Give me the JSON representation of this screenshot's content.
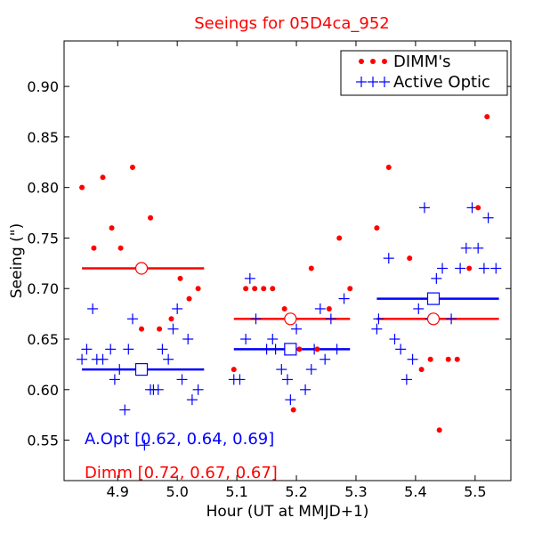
{
  "chart_data": {
    "type": "scatter",
    "title": "Seeings for 05D4ca_952",
    "xlabel": "Hour (UT at MMJD+1)",
    "ylabel": "Seeing (\")",
    "xlim": [
      4.81,
      5.56
    ],
    "ylim": [
      0.51,
      0.945
    ],
    "x_ticks": [
      4.9,
      5.0,
      5.1,
      5.2,
      5.3,
      5.4,
      5.5
    ],
    "x_tick_labels": [
      "4.9",
      "5.0",
      "5.1",
      "5.2",
      "5.3",
      "5.4",
      "5.5"
    ],
    "y_ticks": [
      0.55,
      0.6,
      0.65,
      0.7,
      0.75,
      0.8,
      0.85,
      0.9
    ],
    "y_tick_labels": [
      "0.55",
      "0.60",
      "0.65",
      "0.70",
      "0.75",
      "0.80",
      "0.85",
      "0.90"
    ],
    "legend_position": "top-right",
    "series": [
      {
        "name": "DIMM's",
        "marker": "dot",
        "color": "#ff0000",
        "x": [
          4.84,
          4.86,
          4.875,
          4.89,
          4.905,
          4.925,
          4.94,
          4.955,
          4.97,
          4.99,
          5.005,
          5.02,
          5.035,
          5.095,
          5.115,
          5.13,
          5.145,
          5.16,
          5.18,
          5.195,
          5.205,
          5.225,
          5.235,
          5.255,
          5.272,
          5.29,
          5.335,
          5.355,
          5.39,
          5.41,
          5.425,
          5.44,
          5.455,
          5.47,
          5.49,
          5.505,
          5.52
        ],
        "y": [
          0.8,
          0.74,
          0.81,
          0.76,
          0.74,
          0.82,
          0.66,
          0.77,
          0.66,
          0.67,
          0.71,
          0.69,
          0.7,
          0.62,
          0.7,
          0.7,
          0.7,
          0.7,
          0.68,
          0.58,
          0.64,
          0.72,
          0.64,
          0.68,
          0.75,
          0.7,
          0.76,
          0.82,
          0.73,
          0.62,
          0.63,
          0.56,
          0.63,
          0.63,
          0.72,
          0.78,
          0.87
        ]
      },
      {
        "name": "Active Optic",
        "marker": "plus",
        "color": "#0000ff",
        "x": [
          4.84,
          4.848,
          4.858,
          4.865,
          4.875,
          4.888,
          4.895,
          4.903,
          4.912,
          4.918,
          4.925,
          4.945,
          4.955,
          4.96,
          4.968,
          4.975,
          4.985,
          4.993,
          5.0,
          5.008,
          5.018,
          5.025,
          5.035,
          5.095,
          5.105,
          5.115,
          5.122,
          5.132,
          5.15,
          5.16,
          5.165,
          5.175,
          5.185,
          5.19,
          5.2,
          5.215,
          5.225,
          5.23,
          5.24,
          5.248,
          5.258,
          5.268,
          5.28,
          5.335,
          5.338,
          5.355,
          5.365,
          5.375,
          5.385,
          5.395,
          5.405,
          5.415,
          5.425,
          5.435,
          5.445,
          5.46,
          5.475,
          5.485,
          5.495,
          5.505,
          5.515,
          5.522,
          5.535
        ],
        "y": [
          0.63,
          0.64,
          0.68,
          0.63,
          0.63,
          0.64,
          0.61,
          0.62,
          0.58,
          0.64,
          0.67,
          0.545,
          0.6,
          0.6,
          0.6,
          0.64,
          0.63,
          0.66,
          0.68,
          0.61,
          0.65,
          0.59,
          0.6,
          0.61,
          0.61,
          0.65,
          0.71,
          0.67,
          0.64,
          0.65,
          0.64,
          0.62,
          0.61,
          0.59,
          0.66,
          0.6,
          0.62,
          0.64,
          0.68,
          0.63,
          0.67,
          0.64,
          0.69,
          0.66,
          0.67,
          0.73,
          0.65,
          0.64,
          0.61,
          0.63,
          0.68,
          0.78,
          0.67,
          0.71,
          0.72,
          0.67,
          0.72,
          0.74,
          0.78,
          0.74,
          0.72,
          0.77,
          0.72
        ]
      }
    ],
    "averages": [
      {
        "series": "DIMM's",
        "color": "#ff0000",
        "marker": "circle",
        "x": 4.94,
        "y": 0.72,
        "x_start": 4.84,
        "x_end": 5.045
      },
      {
        "series": "DIMM's",
        "color": "#ff0000",
        "marker": "circle",
        "x": 5.19,
        "y": 0.67,
        "x_start": 5.095,
        "x_end": 5.29
      },
      {
        "series": "DIMM's",
        "color": "#ff0000",
        "marker": "circle",
        "x": 5.43,
        "y": 0.67,
        "x_start": 5.335,
        "x_end": 5.54
      },
      {
        "series": "Active Optic",
        "color": "#0000ff",
        "marker": "square",
        "x": 4.94,
        "y": 0.62,
        "x_start": 4.84,
        "x_end": 5.045
      },
      {
        "series": "Active Optic",
        "color": "#0000ff",
        "marker": "square",
        "x": 5.19,
        "y": 0.64,
        "x_start": 5.095,
        "x_end": 5.29
      },
      {
        "series": "Active Optic",
        "color": "#0000ff",
        "marker": "square",
        "x": 5.43,
        "y": 0.69,
        "x_start": 5.335,
        "x_end": 5.54
      }
    ],
    "annotations": [
      {
        "text": "A.Opt [0.62, 0.64, 0.69]",
        "color": "#0000ff"
      },
      {
        "text": "Dimm [0.72, 0.67, 0.67]",
        "color": "#ff0000"
      }
    ]
  }
}
